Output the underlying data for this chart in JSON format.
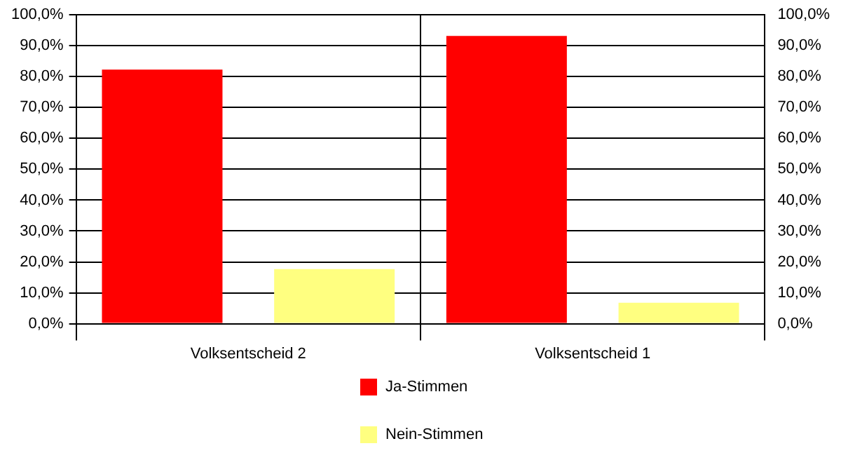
{
  "chart_data": {
    "type": "bar",
    "categories": [
      "Volksentscheid 2",
      "Volksentscheid 1"
    ],
    "series": [
      {
        "name": "Ja-Stimmen",
        "color": "#ff0000",
        "values": [
          82.3,
          93.2
        ]
      },
      {
        "name": "Nein-Stimmen",
        "color": "#ffff80",
        "values": [
          17.7,
          6.8
        ]
      }
    ],
    "ylim": [
      0,
      100
    ],
    "yticks": [
      {
        "value": 0,
        "label": "0,0%"
      },
      {
        "value": 10,
        "label": "10,0%"
      },
      {
        "value": 20,
        "label": "20,0%"
      },
      {
        "value": 30,
        "label": "30,0%"
      },
      {
        "value": 40,
        "label": "40,0%"
      },
      {
        "value": 50,
        "label": "50,0%"
      },
      {
        "value": 60,
        "label": "60,0%"
      },
      {
        "value": 70,
        "label": "70,0%"
      },
      {
        "value": 80,
        "label": "80,0%"
      },
      {
        "value": 90,
        "label": "90,0%"
      },
      {
        "value": 100,
        "label": "100,0%"
      }
    ],
    "y2lim": [
      0,
      100
    ],
    "y2ticks": [
      {
        "value": 0,
        "label": "0,0%"
      },
      {
        "value": 10,
        "label": "10,0%"
      },
      {
        "value": 20,
        "label": "20,0%"
      },
      {
        "value": 30,
        "label": "30,0%"
      },
      {
        "value": 40,
        "label": "40,0%"
      },
      {
        "value": 50,
        "label": "50,0%"
      },
      {
        "value": 60,
        "label": "60,0%"
      },
      {
        "value": 70,
        "label": "70,0%"
      },
      {
        "value": 80,
        "label": "80,0%"
      },
      {
        "value": 90,
        "label": "90,0%"
      },
      {
        "value": 100,
        "label": "100,0%"
      }
    ],
    "grid": true,
    "legend": "bottom"
  }
}
